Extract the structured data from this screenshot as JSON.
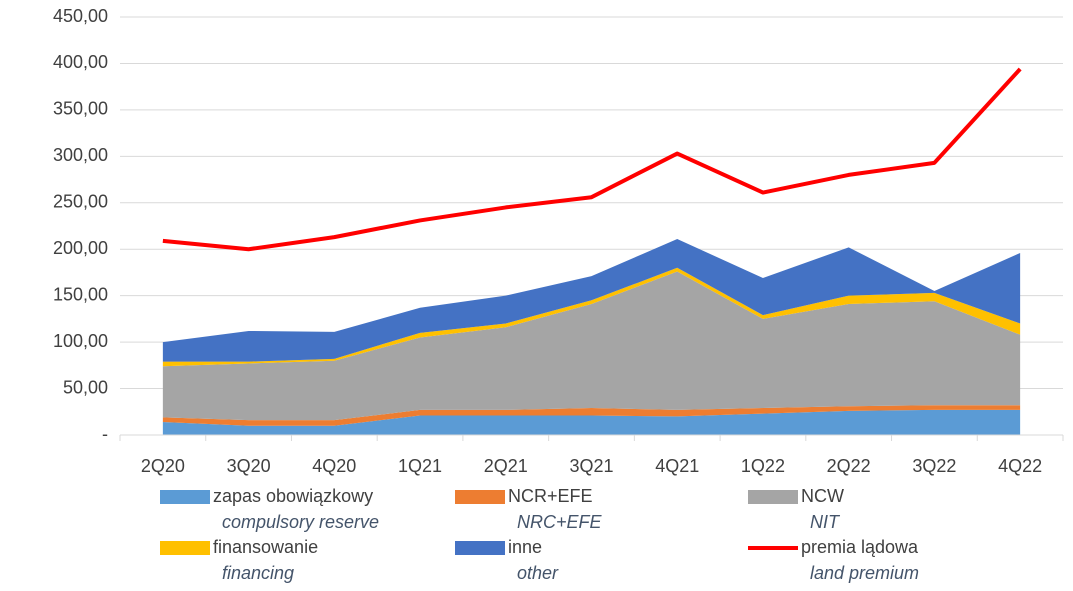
{
  "chart_data": {
    "type": "stacked_area_line",
    "categories": [
      "2Q20",
      "3Q20",
      "4Q20",
      "1Q21",
      "2Q21",
      "3Q21",
      "4Q21",
      "1Q22",
      "2Q22",
      "3Q22",
      "4Q22"
    ],
    "series": [
      {
        "name": "zapas obowiązkowy",
        "name_en": "compulsory reserve",
        "color": "#5b9bd5",
        "kind": "area",
        "values": [
          14,
          10,
          10,
          21,
          21,
          21,
          20,
          23,
          26,
          27,
          27
        ]
      },
      {
        "name": "NCR+EFE",
        "name_en": "NRC+EFE",
        "color": "#ed7d31",
        "kind": "area",
        "values": [
          5,
          6,
          6,
          6,
          6,
          8,
          7,
          6,
          5,
          5,
          5
        ]
      },
      {
        "name": "NCW",
        "name_en": "NIT",
        "color": "#a5a5a5",
        "kind": "area",
        "values": [
          55,
          61,
          64,
          78,
          89,
          112,
          149,
          96,
          110,
          112,
          76
        ]
      },
      {
        "name": "finansowanie",
        "name_en": "financing",
        "color": "#ffc000",
        "kind": "area",
        "values": [
          5,
          2,
          2,
          5,
          4,
          4,
          4,
          4,
          9,
          9,
          12
        ]
      },
      {
        "name": "inne",
        "name_en": "other",
        "color": "#4472c4",
        "kind": "area",
        "values": [
          21,
          33,
          29,
          27,
          30,
          26,
          31,
          40,
          52,
          2,
          76
        ]
      },
      {
        "name": "premia lądowa",
        "name_en": "land premium",
        "color": "#ff0000",
        "kind": "line",
        "values": [
          209,
          200,
          213,
          231,
          245,
          256,
          303,
          261,
          280,
          293,
          394
        ]
      }
    ],
    "ylim": [
      0,
      450
    ],
    "yticks": [
      {
        "value": 0,
        "label": "-"
      },
      {
        "value": 50,
        "label": "50,00"
      },
      {
        "value": 100,
        "label": "100,00"
      },
      {
        "value": 150,
        "label": "150,00"
      },
      {
        "value": 200,
        "label": "200,00"
      },
      {
        "value": 250,
        "label": "250,00"
      },
      {
        "value": 300,
        "label": "300,00"
      },
      {
        "value": 350,
        "label": "350,00"
      },
      {
        "value": 400,
        "label": "400,00"
      },
      {
        "value": 450,
        "label": "450,00"
      }
    ],
    "grid": true,
    "legend": "bottom"
  }
}
